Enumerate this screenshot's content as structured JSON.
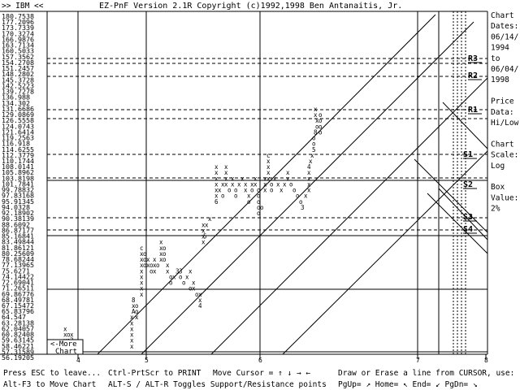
{
  "window": {
    "ticker": ">> IBM <<",
    "title": "EZ-PnF Version 2.1R Copyright (c)1992,1998 Ben Antanaitis, Jr."
  },
  "side_panel": {
    "lines": [
      "Chart",
      "Dates:",
      "06/14/",
      "1994",
      "to",
      "06/04/",
      "1998",
      "",
      "Price",
      "Data:",
      "Hi/Low",
      "",
      "Chart",
      "Scale:",
      "Log",
      "",
      "Box",
      "Value:",
      "2%"
    ]
  },
  "price_scale": [
    "180.7538",
    "177.2096",
    "173.7339",
    "170.3274",
    "166.9876",
    "163.7134",
    "160.5033",
    "157.3562",
    "154.2708",
    "151.2457",
    "148.2802",
    "145.3728",
    "142.5223",
    "139.7278",
    "136.988",
    "134.302",
    "131.6686",
    "129.0869",
    "126.5558",
    "124.0743",
    "121.6414",
    "119.2563",
    "116.918",
    "114.6255",
    "112.3779",
    "110.1744",
    "108.0141",
    "105.8962",
    "103.8198",
    "101.7841",
    "99.78832",
    "97.83168",
    "95.91345",
    "94.0328",
    "92.18902",
    "90.38139",
    "88.6092",
    "86.87177",
    "85.16841",
    "83.49844",
    "81.86121",
    "80.25609",
    "78.68244",
    "77.13965",
    "75.6271",
    "74.14422",
    "72.69041",
    "71.26511",
    "69.86776",
    "68.49781",
    "67.15472",
    "65.83796",
    "64.547",
    "63.28138",
    "62.04057",
    "60.82408",
    "59.63145",
    "58.46221",
    "57.31589",
    "56.19205"
  ],
  "chart_data": {
    "type": "point-and-figure",
    "ticker": "IBM",
    "date_range": [
      "06/14/1994",
      "06/04/1998"
    ],
    "price_data": "Hi/Low",
    "scale": "Log",
    "box_value": "2%",
    "box_prices": [
      180.7538,
      177.2096,
      173.7339,
      170.3274,
      166.9876,
      163.7134,
      160.5033,
      157.3562,
      154.2708,
      151.2457,
      148.2802,
      145.3728,
      142.5223,
      139.7278,
      136.988,
      134.302,
      131.6686,
      129.0869,
      126.5558,
      124.0743,
      121.6414,
      119.2563,
      116.918,
      114.6255,
      112.3779,
      110.1744,
      108.0141,
      105.8962,
      103.8198,
      101.7841,
      99.78832,
      97.83168,
      95.91345,
      94.0328,
      92.18902,
      90.38139,
      88.6092,
      86.87177,
      85.16841,
      83.49844,
      81.86121,
      80.25609,
      78.68244,
      77.13965,
      75.6271,
      74.14422,
      72.69041,
      71.26511,
      69.86776,
      68.49781,
      67.15472,
      65.83796,
      64.547,
      63.28138,
      62.04057,
      60.82408,
      59.63145,
      58.46221,
      57.31589,
      56.19205
    ],
    "year_markers": [
      "4",
      "5",
      "6",
      "7",
      "8"
    ],
    "support_resistance": [
      {
        "label": "R3",
        "price": 154.2708
      },
      {
        "label": "R2",
        "price": 145.3728
      },
      {
        "label": "R1",
        "price": 129.0869
      },
      {
        "label": "S1",
        "price": 110.1744
      },
      {
        "label": "S2",
        "price": 99.78832
      },
      {
        "label": "S3",
        "price": 86.87177
      },
      {
        "label": "S4",
        "price": 83.49844
      }
    ],
    "columns": [
      {
        "type": "X",
        "from": 56.19205,
        "to": 57.31589
      },
      {
        "type": "X",
        "from": 57.31589,
        "to": 61.0
      },
      {
        "type": "O",
        "from": 61.0,
        "to": 56.19205
      },
      {
        "type": "X",
        "from": 56.19205,
        "to": 59.63145
      },
      {
        "type": "O",
        "from": 59.63145,
        "to": 56.19205
      },
      {
        "type": "X",
        "from": 56.19205,
        "to": 68.49781
      },
      {
        "type": "X",
        "from": 65.83796,
        "to": 80.25609
      },
      {
        "type": "O",
        "from": 80.25609,
        "to": 70.0
      },
      {
        "type": "X",
        "from": 70.0,
        "to": 83.49844
      },
      {
        "type": "O",
        "from": 83.49844,
        "to": 66.0
      },
      {
        "type": "X",
        "from": 66.0,
        "to": 88.6092
      },
      {
        "type": "X",
        "from": 88.6092,
        "to": 106.0
      },
      {
        "type": "O",
        "from": 106.0,
        "to": 90.38139
      },
      {
        "type": "X",
        "from": 90.38139,
        "to": 110.1744
      },
      {
        "type": "O",
        "from": 110.1744,
        "to": 92.18902
      },
      {
        "type": "X",
        "from": 92.18902,
        "to": 129.0869
      },
      {
        "type": "O",
        "from": 129.0869,
        "to": 95.91345
      }
    ]
  },
  "marks": [
    {
      "t": "x",
      "c": 66,
      "r": 59
    },
    {
      "t": "x",
      "c": 68,
      "r": 57
    },
    {
      "t": "x",
      "c": 68,
      "r": 56
    },
    {
      "t": "x",
      "c": 68,
      "r": 55
    },
    {
      "t": "x",
      "c": 68,
      "r": 54
    },
    {
      "t": "o",
      "c": 70,
      "r": 55
    },
    {
      "t": "o",
      "c": 70,
      "r": 56
    },
    {
      "t": "x",
      "c": 70,
      "r": 57
    },
    {
      "t": "3",
      "c": 72,
      "r": 56
    },
    {
      "t": "x",
      "c": 72,
      "r": 55
    },
    {
      "t": "o",
      "c": 74,
      "r": 57
    },
    {
      "t": "x",
      "c": 74,
      "r": 58
    },
    {
      "t": "o",
      "c": 76,
      "r": 59
    },
    {
      "t": "x",
      "c": 78,
      "r": 58
    },
    {
      "t": "x",
      "c": 80,
      "r": 59
    },
    {
      "t": "o",
      "c": 82,
      "r": 58
    },
    {
      "t": "x",
      "c": 84,
      "r": 59
    },
    {
      "t": "x",
      "c": 93,
      "r": 59
    },
    {
      "t": "x",
      "c": 109,
      "r": 59
    },
    {
      "t": "x",
      "c": 109,
      "r": 58
    },
    {
      "t": "x",
      "c": 109,
      "r": 57
    },
    {
      "t": "x",
      "c": 109,
      "r": 56
    },
    {
      "t": "x",
      "c": 109,
      "r": 55
    },
    {
      "t": "x",
      "c": 109,
      "r": 54
    },
    {
      "t": "x",
      "c": 109,
      "r": 53
    },
    {
      "t": "x",
      "c": 109,
      "r": 52
    },
    {
      "t": "A",
      "c": 110,
      "r": 51
    },
    {
      "t": "x",
      "c": 110,
      "r": 50
    },
    {
      "t": "8",
      "c": 110,
      "r": 49
    },
    {
      "t": "o",
      "c": 112,
      "r": 50
    },
    {
      "t": "o",
      "c": 112,
      "r": 51
    },
    {
      "t": "x",
      "c": 112,
      "r": 52
    },
    {
      "t": "x",
      "c": 115,
      "r": 48
    },
    {
      "t": "x",
      "c": 115,
      "r": 47
    },
    {
      "t": "x",
      "c": 115,
      "r": 46
    },
    {
      "t": "x",
      "c": 115,
      "r": 45
    },
    {
      "t": "x",
      "c": 115,
      "r": 44
    },
    {
      "t": "x",
      "c": 115,
      "r": 43
    },
    {
      "t": "x",
      "c": 115,
      "r": 42
    },
    {
      "t": "x",
      "c": 115,
      "r": 41
    },
    {
      "t": "c",
      "c": 115,
      "r": 40
    },
    {
      "t": "o",
      "c": 117,
      "r": 41
    },
    {
      "t": "o",
      "c": 117,
      "r": 42
    },
    {
      "t": "o",
      "c": 117,
      "r": 43
    },
    {
      "t": "x",
      "c": 119,
      "r": 43
    },
    {
      "t": "x",
      "c": 119,
      "r": 42
    },
    {
      "t": "o",
      "c": 121,
      "r": 43
    },
    {
      "t": "o",
      "c": 121,
      "r": 44
    },
    {
      "t": "x",
      "c": 123,
      "r": 44
    },
    {
      "t": "x",
      "c": 123,
      "r": 43
    },
    {
      "t": "x",
      "c": 123,
      "r": 42
    },
    {
      "t": "o",
      "c": 125,
      "r": 43
    },
    {
      "t": "x",
      "c": 127,
      "r": 42
    },
    {
      "t": "x",
      "c": 127,
      "r": 41
    },
    {
      "t": "x",
      "c": 127,
      "r": 40
    },
    {
      "t": "x",
      "c": 127,
      "r": 39
    },
    {
      "t": "o",
      "c": 129,
      "r": 40
    },
    {
      "t": "o",
      "c": 129,
      "r": 41
    },
    {
      "t": "o",
      "c": 129,
      "r": 42
    },
    {
      "t": "x",
      "c": 131,
      "r": 43
    },
    {
      "t": "x",
      "c": 131,
      "r": 44
    },
    {
      "t": "o",
      "c": 133,
      "r": 45
    },
    {
      "t": "o",
      "c": 133,
      "r": 46
    },
    {
      "t": "x",
      "c": 135,
      "r": 45
    },
    {
      "t": "3",
      "c": 137,
      "r": 44
    },
    {
      "t": "3",
      "c": 139,
      "r": 44
    },
    {
      "t": "o",
      "c": 139,
      "r": 45
    },
    {
      "t": "o",
      "c": 141,
      "r": 46
    },
    {
      "t": "x",
      "c": 143,
      "r": 45
    },
    {
      "t": "x",
      "c": 145,
      "r": 44
    },
    {
      "t": "o",
      "c": 145,
      "r": 47
    },
    {
      "t": "x",
      "c": 147,
      "r": 47
    },
    {
      "t": "x",
      "c": 147,
      "r": 46
    },
    {
      "t": "o",
      "c": 149,
      "r": 48
    },
    {
      "t": "x",
      "c": 151,
      "r": 48
    },
    {
      "t": "x",
      "c": 151,
      "r": 49
    },
    {
      "t": "4",
      "c": 151,
      "r": 50
    },
    {
      "t": "x",
      "c": 153,
      "r": 36
    },
    {
      "t": "x",
      "c": 153,
      "r": 37
    },
    {
      "t": "x",
      "c": 153,
      "r": 38
    },
    {
      "t": "x",
      "c": 153,
      "r": 39
    },
    {
      "t": "5",
      "c": 154,
      "r": 38
    },
    {
      "t": "x",
      "c": 155,
      "r": 36
    },
    {
      "t": "x",
      "c": 157,
      "r": 35
    },
    {
      "t": "x",
      "c": 161,
      "r": 26
    },
    {
      "t": "x",
      "c": 161,
      "r": 27
    },
    {
      "t": "x",
      "c": 161,
      "r": 28
    },
    {
      "t": "x",
      "c": 161,
      "r": 29
    },
    {
      "t": "x",
      "c": 161,
      "r": 30
    },
    {
      "t": "x",
      "c": 161,
      "r": 31
    },
    {
      "t": "6",
      "c": 161,
      "r": 32
    },
    {
      "t": "x",
      "c": 163,
      "r": 30
    },
    {
      "t": "o",
      "c": 165,
      "r": 31
    },
    {
      "t": "x",
      "c": 165,
      "r": 29
    },
    {
      "t": "x",
      "c": 167,
      "r": 26
    },
    {
      "t": "x",
      "c": 167,
      "r": 27
    },
    {
      "t": "x",
      "c": 167,
      "r": 28
    },
    {
      "t": "x",
      "c": 167,
      "r": 29
    },
    {
      "t": "o",
      "c": 169,
      "r": 30
    },
    {
      "t": "x",
      "c": 171,
      "r": 28
    },
    {
      "t": "x",
      "c": 171,
      "r": 29
    },
    {
      "t": "o",
      "c": 173,
      "r": 30
    },
    {
      "t": "o",
      "c": 173,
      "r": 31
    },
    {
      "t": "x",
      "c": 175,
      "r": 29
    },
    {
      "t": "x",
      "c": 177,
      "r": 28
    },
    {
      "t": "x",
      "c": 179,
      "r": 29
    },
    {
      "t": "x",
      "c": 179,
      "r": 30
    },
    {
      "t": "x",
      "c": 181,
      "r": 31
    },
    {
      "t": "o",
      "c": 181,
      "r": 32
    },
    {
      "t": "x",
      "c": 183,
      "r": 29
    },
    {
      "t": "o",
      "c": 183,
      "r": 30
    },
    {
      "t": "x",
      "c": 185,
      "r": 28
    },
    {
      "t": "x",
      "c": 185,
      "r": 29
    },
    {
      "t": "o",
      "c": 187,
      "r": 30
    },
    {
      "t": "o",
      "c": 187,
      "r": 31
    },
    {
      "t": "o",
      "c": 187,
      "r": 32
    },
    {
      "t": "o",
      "c": 187,
      "r": 33
    },
    {
      "t": "o",
      "c": 187,
      "r": 34
    },
    {
      "t": "o",
      "c": 189,
      "r": 33
    },
    {
      "t": "x",
      "c": 191,
      "r": 30
    },
    {
      "t": "x",
      "c": 191,
      "r": 29
    },
    {
      "t": "x",
      "c": 191,
      "r": 28
    },
    {
      "t": "c",
      "c": 193,
      "r": 24
    },
    {
      "t": "x",
      "c": 193,
      "r": 25
    },
    {
      "t": "x",
      "c": 193,
      "r": 26
    },
    {
      "t": "x",
      "c": 193,
      "r": 27
    },
    {
      "t": "x",
      "c": 193,
      "r": 28
    },
    {
      "t": "o",
      "c": 195,
      "r": 29
    },
    {
      "t": "o",
      "c": 195,
      "r": 30
    },
    {
      "t": "x",
      "c": 197,
      "r": 28
    },
    {
      "t": "x",
      "c": 199,
      "r": 29
    },
    {
      "t": "x",
      "c": 201,
      "r": 30
    },
    {
      "t": "x",
      "c": 203,
      "r": 29
    },
    {
      "t": "x",
      "c": 205,
      "r": 27
    },
    {
      "t": "x",
      "c": 205,
      "r": 28
    },
    {
      "t": "o",
      "c": 207,
      "r": 29
    },
    {
      "t": "o",
      "c": 209,
      "r": 30
    },
    {
      "t": "o",
      "c": 211,
      "r": 31
    },
    {
      "t": "o",
      "c": 213,
      "r": 32
    },
    {
      "t": "3",
      "c": 214,
      "r": 33
    },
    {
      "t": "x",
      "c": 216,
      "r": 31
    },
    {
      "t": "x",
      "c": 218,
      "r": 30
    },
    {
      "t": "x",
      "c": 218,
      "r": 29
    },
    {
      "t": "x",
      "c": 218,
      "r": 28
    },
    {
      "t": "x",
      "c": 218,
      "r": 27
    },
    {
      "t": "4",
      "c": 218,
      "r": 26
    },
    {
      "t": "x",
      "c": 219,
      "r": 25
    },
    {
      "t": "x",
      "c": 220,
      "r": 24
    },
    {
      "t": "5",
      "c": 221,
      "r": 23
    },
    {
      "t": "o",
      "c": 221,
      "r": 22
    },
    {
      "t": "o",
      "c": 221,
      "r": 21
    },
    {
      "t": "8",
      "c": 222,
      "r": 20
    },
    {
      "t": "o",
      "c": 223,
      "r": 19
    },
    {
      "t": "x",
      "c": 223,
      "r": 18
    },
    {
      "t": "o",
      "c": 225,
      "r": 17
    },
    {
      "t": "o",
      "c": 225,
      "r": 18
    },
    {
      "t": "o",
      "c": 225,
      "r": 19
    },
    {
      "t": "o",
      "c": 225,
      "r": 20
    },
    {
      "t": "x",
      "c": 222,
      "r": 17
    },
    {
      "t": "x",
      "c": 222,
      "r": 16
    }
  ],
  "levels": [
    "R3",
    "R2",
    "R1",
    "S1",
    "S2",
    "S3",
    "S4"
  ],
  "more_button": "<-More\nChart",
  "axis_markers": [
    "4",
    "5",
    "6",
    "7",
    "8"
  ],
  "footer": {
    "line1": [
      "Press ESC to leave...",
      "Ctrl-PrtScr to PRINT",
      "Move Cursor = ↑ ↓ → ←",
      "Draw or Erase a line from CURSOR, use:"
    ],
    "line2": [
      "Alt-F3 to Move Chart",
      "ALT-S / ALT-R Toggles Support/Resistance points",
      "PgUp= ↗ Home= ↖ End= ↙ PgDn= ↘"
    ]
  }
}
